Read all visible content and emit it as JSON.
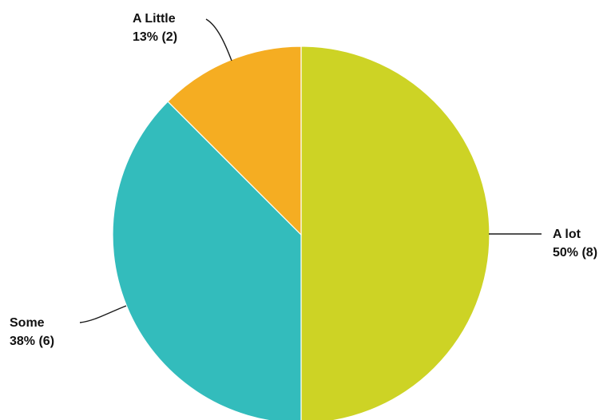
{
  "chart_data": {
    "type": "pie",
    "title": "",
    "slices": [
      {
        "label": "A lot",
        "value": 8,
        "percent": "50%",
        "display": "50% (8)",
        "color": "#cdd325"
      },
      {
        "label": "Some",
        "value": 6,
        "percent": "38%",
        "display": "38% (6)",
        "color": "#33bcbc"
      },
      {
        "label": "A Little",
        "value": 2,
        "percent": "13%",
        "display": "13% (2)",
        "color": "#f5ad22"
      }
    ]
  }
}
